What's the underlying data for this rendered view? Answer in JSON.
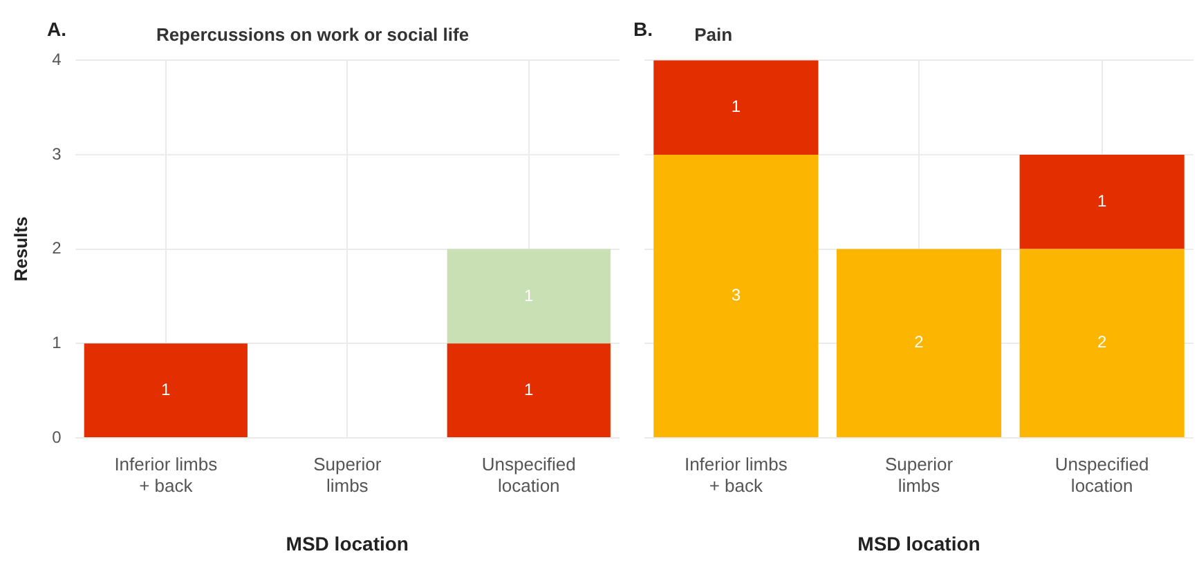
{
  "chart_data": [
    {
      "type": "bar",
      "title": "Repercussions on work or social life",
      "annotations": [
        "A."
      ],
      "xlabel": "MSD location",
      "ylabel": "Results",
      "categories": [
        "Inferior limbs\n+ back",
        "Superior\nlimbs",
        "Unspecified\nlocation"
      ],
      "stacked": true,
      "series": [
        {
          "color": "#e32f00",
          "values": [
            1,
            null,
            1
          ]
        },
        {
          "color": "#c9dfb4",
          "values": [
            null,
            null,
            1
          ]
        }
      ],
      "ylim": [
        0,
        4
      ],
      "yticks": [
        0,
        1,
        2,
        3,
        4
      ],
      "grid": true,
      "data_labels": true
    },
    {
      "type": "bar",
      "title": "Pain",
      "annotations": [
        "B."
      ],
      "xlabel": "MSD location",
      "categories": [
        "Inferior limbs\n+ back",
        "Superior\nlimbs",
        "Unspecified\nlocation"
      ],
      "stacked": true,
      "series": [
        {
          "color": "#fcb500",
          "values": [
            3,
            2,
            2
          ]
        },
        {
          "color": "#e32f00",
          "values": [
            1,
            null,
            1
          ]
        }
      ],
      "ylim": [
        0,
        4
      ],
      "yticks": [
        0,
        1,
        2,
        3,
        4
      ],
      "grid": true,
      "data_labels": true,
      "tick_labels": "x"
    }
  ]
}
